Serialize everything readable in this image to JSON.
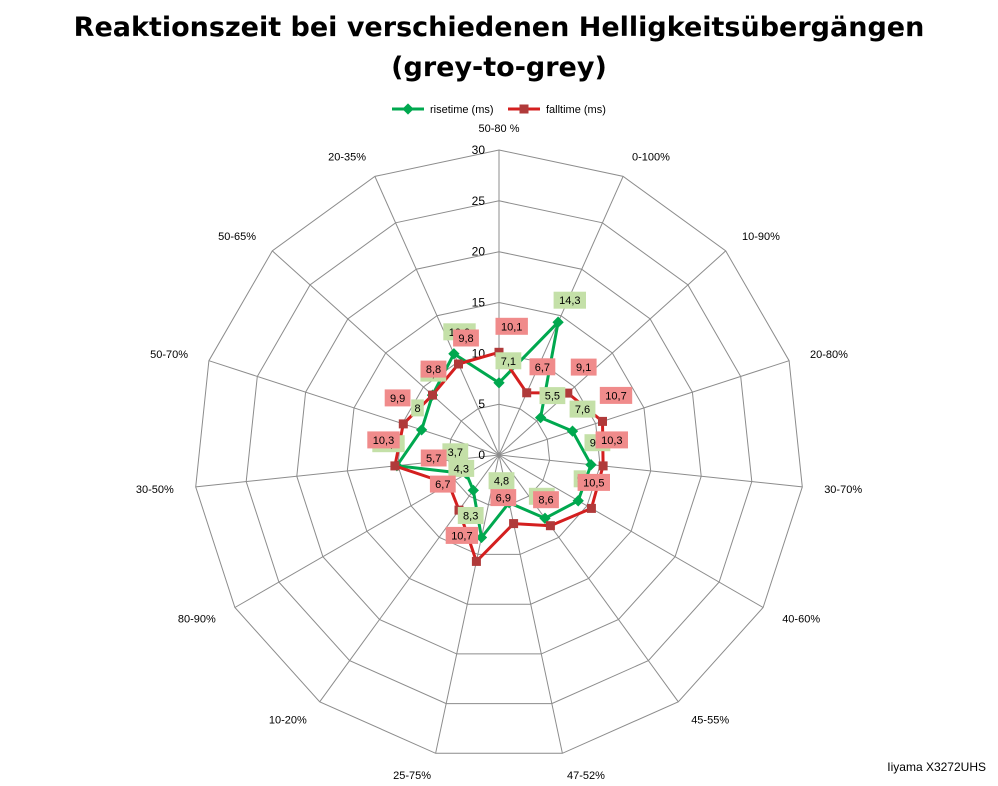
{
  "title_line_1": "Reaktionszeit bei verschiedenen Helligkeitsübergängen",
  "title_line_2": "(grey-to-grey)",
  "footer": "Iiyama X3272UHS",
  "colors": {
    "rise": "#00a84f",
    "fall": "#d41f1f",
    "rise_label_bg": "#c4e0a8",
    "fall_label_bg": "#f08b8b",
    "grid": "#8c8c8c"
  },
  "chart_data": {
    "type": "radar",
    "categories": [
      "50-80 %",
      "0-100%",
      "10-90%",
      "20-80%",
      "30-70%",
      "40-60%",
      "45-55%",
      "47-52%",
      "25-75%",
      "10-20%",
      "80-90%",
      "30-50%",
      "50-70%",
      "50-65%",
      "20-35%"
    ],
    "axis_ticks": [
      "0",
      "5",
      "10",
      "15",
      "20",
      "25",
      "30"
    ],
    "rlim": [
      0,
      30
    ],
    "grid": true,
    "legend_position": "top",
    "series": [
      {
        "name": "risetime (ms)",
        "values": [
          7.1,
          14.3,
          5.5,
          7.6,
          9.1,
          9,
          7.7,
          4.8,
          8.3,
          4.3,
          3.7,
          10.1,
          8,
          8.8,
          10.9
        ],
        "labels": [
          "7,1",
          "14,3",
          "5,5",
          "7,6",
          "9,1",
          "9",
          "7,7",
          "4,8",
          "8,3",
          "4,3",
          "3,7",
          "10,1",
          "8",
          "8,8",
          "10,9"
        ]
      },
      {
        "name": "falltime (ms)",
        "values": [
          10.1,
          6.7,
          9.1,
          10.7,
          10.3,
          10.5,
          8.6,
          6.9,
          10.7,
          6.7,
          5.7,
          10.3,
          9.9,
          8.8,
          9.8
        ],
        "labels": [
          "10,1",
          "6,7",
          "9,1",
          "10,7",
          "10,3",
          "10,5",
          "8,6",
          "6,9",
          "10,7",
          "6,7",
          "5,7",
          "10,3",
          "9,9",
          "8,8",
          "9,8"
        ]
      }
    ]
  }
}
